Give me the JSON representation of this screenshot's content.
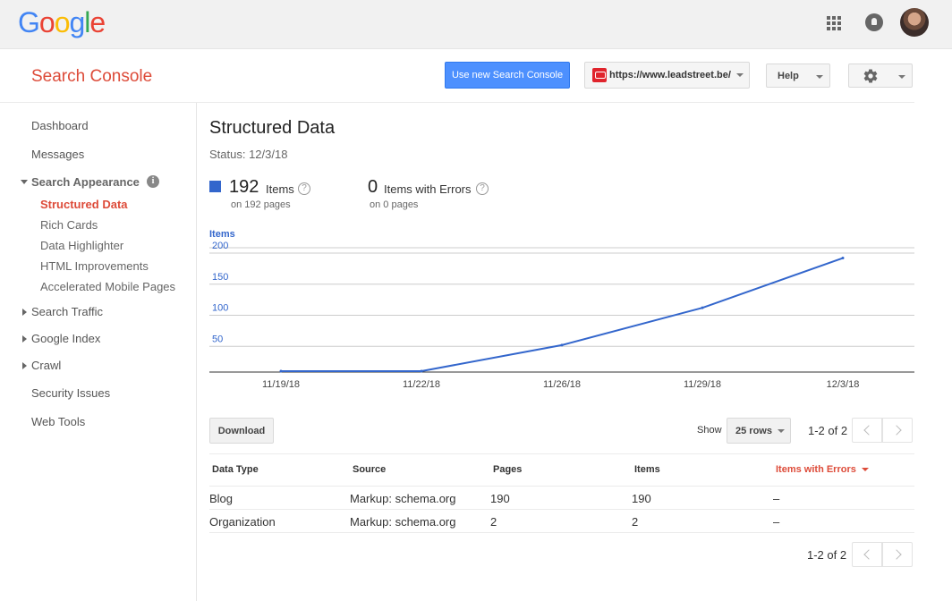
{
  "google_bar": {
    "logo": [
      "G",
      "o",
      "o",
      "g",
      "l",
      "e"
    ],
    "logo_colors": [
      "#4285f4",
      "#ea4335",
      "#fbbc05",
      "#4285f4",
      "#34a853",
      "#ea4335"
    ]
  },
  "header": {
    "product_title": "Search Console",
    "new_console_label": "Use new Search Console",
    "site_url": "https://www.leadstreet.be/",
    "help_label": "Help"
  },
  "sidebar": {
    "dashboard": "Dashboard",
    "messages": "Messages",
    "search_appearance": "Search Appearance",
    "info_glyph": "i",
    "sub_items": [
      "Structured Data",
      "Rich Cards",
      "Data Highlighter",
      "HTML Improvements",
      "Accelerated Mobile Pages"
    ],
    "search_traffic": "Search Traffic",
    "google_index": "Google Index",
    "crawl": "Crawl",
    "security_issues": "Security Issues",
    "web_tools": "Web Tools"
  },
  "main": {
    "title": "Structured Data",
    "status": "Status: 12/3/18",
    "items_count": "192",
    "items_label": "Items",
    "items_sub": "on 192 pages",
    "errors_count": "0",
    "errors_label": "Items with Errors",
    "errors_sub": "on 0 pages",
    "help_glyph": "?"
  },
  "chart_data": {
    "type": "line",
    "ylabel": "Items",
    "x": [
      "11/19/18",
      "11/22/18",
      "11/26/18",
      "11/29/18",
      "12/3/18"
    ],
    "series": [
      {
        "values": [
          1,
          5,
          52,
          112,
          192
        ]
      }
    ],
    "yticks": [
      50,
      100,
      150,
      200
    ],
    "ylim": [
      0,
      200
    ],
    "grid": true,
    "colors": {
      "line": "#3366cc",
      "axis_text": "#3366cc"
    }
  },
  "controls": {
    "download_label": "Download",
    "show_label": "Show",
    "rows_value": "25 rows",
    "pager_top": "1-2 of 2",
    "pager_bottom": "1-2 of 2"
  },
  "table": {
    "headers": [
      "Data Type",
      "Source",
      "Pages",
      "Items",
      "Items with Errors"
    ],
    "rows": [
      [
        "Blog",
        "Markup: schema.org",
        "190",
        "190",
        "–"
      ],
      [
        "Organization",
        "Markup: schema.org",
        "2",
        "2",
        "–"
      ]
    ],
    "accent_color": "#dd4b39"
  }
}
